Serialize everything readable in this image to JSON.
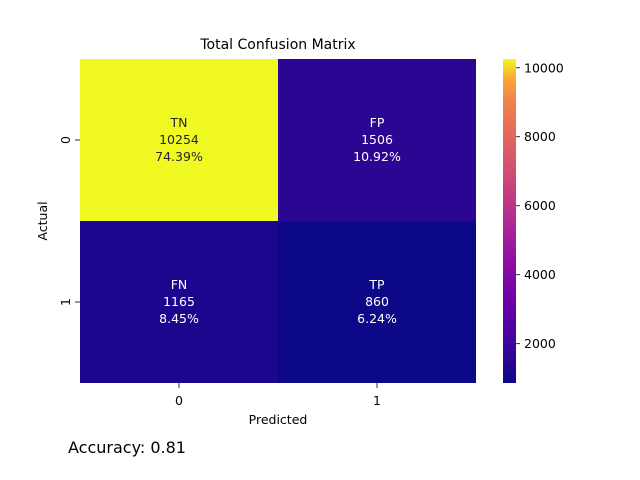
{
  "chart_data": {
    "type": "heatmap",
    "title": "Total Confusion Matrix",
    "xlabel": "Predicted",
    "ylabel": "Actual",
    "x_categories": [
      "0",
      "1"
    ],
    "y_categories": [
      "0",
      "1"
    ],
    "colormap": "plasma",
    "color_range": [
      860,
      10254
    ],
    "colorbar_ticks": [
      2000,
      4000,
      6000,
      8000,
      10000
    ],
    "cells": [
      {
        "row": 0,
        "col": 0,
        "label": "TN",
        "value": 10254,
        "percent": "74.39%",
        "value_text": "10254"
      },
      {
        "row": 0,
        "col": 1,
        "label": "FP",
        "value": 1506,
        "percent": "10.92%",
        "value_text": "1506"
      },
      {
        "row": 1,
        "col": 0,
        "label": "FN",
        "value": 1165,
        "percent": "8.45%",
        "value_text": "1165"
      },
      {
        "row": 1,
        "col": 1,
        "label": "TP",
        "value": 860,
        "percent": "6.24%",
        "value_text": "860"
      }
    ]
  },
  "footer": {
    "accuracy_text": "Accuracy: 0.81"
  }
}
